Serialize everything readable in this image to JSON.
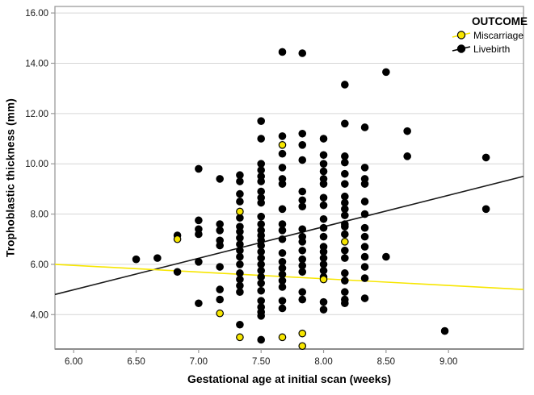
{
  "chart_data": {
    "type": "scatter",
    "title": "",
    "xlabel": "Gestational age at initial scan (weeks)",
    "ylabel": "Trophoblastic thickness (mm)",
    "legend_title": "OUTCOME",
    "legend_position": "top-right-inside",
    "grid": "horizontal",
    "xlim": [
      5.85,
      9.6
    ],
    "ylim": [
      2.63,
      16.26
    ],
    "xticks": [
      {
        "v": 6.0,
        "label": "6.00"
      },
      {
        "v": 6.5,
        "label": "6.50"
      },
      {
        "v": 7.0,
        "label": "7.00"
      },
      {
        "v": 7.5,
        "label": "7.50"
      },
      {
        "v": 8.0,
        "label": "8.00"
      },
      {
        "v": 8.5,
        "label": "8.50"
      },
      {
        "v": 9.0,
        "label": "9.00"
      }
    ],
    "yticks": [
      {
        "v": 16,
        "label": "16.00"
      },
      {
        "v": 14,
        "label": "14.00"
      },
      {
        "v": 12,
        "label": "12.00"
      },
      {
        "v": 10,
        "label": "10.00"
      },
      {
        "v": 8,
        "label": "8.00"
      },
      {
        "v": 6,
        "label": "6.00"
      },
      {
        "v": 4,
        "label": "4.00"
      }
    ],
    "series": [
      {
        "name": "Miscarriage",
        "color": "#f7e600",
        "points": [
          [
            6.83,
            7.0
          ],
          [
            7.17,
            4.05
          ],
          [
            7.33,
            8.1
          ],
          [
            7.33,
            3.1
          ],
          [
            7.67,
            10.75
          ],
          [
            7.67,
            3.1
          ],
          [
            7.83,
            3.25
          ],
          [
            7.83,
            2.75
          ],
          [
            8.0,
            5.4
          ],
          [
            8.17,
            6.9
          ]
        ]
      },
      {
        "name": "Livebirth",
        "color": "#000000",
        "points": [
          [
            6.5,
            6.2
          ],
          [
            6.67,
            6.25
          ],
          [
            6.83,
            7.15
          ],
          [
            6.83,
            5.7
          ],
          [
            7.0,
            9.8
          ],
          [
            7.0,
            7.75
          ],
          [
            7.0,
            7.4
          ],
          [
            7.0,
            7.2
          ],
          [
            7.0,
            6.1
          ],
          [
            7.0,
            4.45
          ],
          [
            7.17,
            9.4
          ],
          [
            7.17,
            7.6
          ],
          [
            7.17,
            7.35
          ],
          [
            7.17,
            6.95
          ],
          [
            7.17,
            6.75
          ],
          [
            7.17,
            5.9
          ],
          [
            7.17,
            5.0
          ],
          [
            7.17,
            4.6
          ],
          [
            7.33,
            9.55
          ],
          [
            7.33,
            9.3
          ],
          [
            7.33,
            8.8
          ],
          [
            7.33,
            8.5
          ],
          [
            7.33,
            7.85
          ],
          [
            7.33,
            7.5
          ],
          [
            7.33,
            7.3
          ],
          [
            7.33,
            7.05
          ],
          [
            7.33,
            6.8
          ],
          [
            7.33,
            6.55
          ],
          [
            7.33,
            6.3
          ],
          [
            7.33,
            6.0
          ],
          [
            7.33,
            5.65
          ],
          [
            7.33,
            5.4
          ],
          [
            7.33,
            5.15
          ],
          [
            7.33,
            4.9
          ],
          [
            7.33,
            3.6
          ],
          [
            7.5,
            11.7
          ],
          [
            7.5,
            11.0
          ],
          [
            7.5,
            10.0
          ],
          [
            7.5,
            9.75
          ],
          [
            7.5,
            9.5
          ],
          [
            7.5,
            9.3
          ],
          [
            7.5,
            8.9
          ],
          [
            7.5,
            8.65
          ],
          [
            7.5,
            8.45
          ],
          [
            7.5,
            7.9
          ],
          [
            7.5,
            7.6
          ],
          [
            7.5,
            7.35
          ],
          [
            7.5,
            7.15
          ],
          [
            7.5,
            6.95
          ],
          [
            7.5,
            6.75
          ],
          [
            7.5,
            6.5
          ],
          [
            7.5,
            6.25
          ],
          [
            7.5,
            6.0
          ],
          [
            7.5,
            5.75
          ],
          [
            7.5,
            5.5
          ],
          [
            7.5,
            5.25
          ],
          [
            7.5,
            4.95
          ],
          [
            7.5,
            4.55
          ],
          [
            7.5,
            4.3
          ],
          [
            7.5,
            4.1
          ],
          [
            7.5,
            3.95
          ],
          [
            7.5,
            3.0
          ],
          [
            7.67,
            14.45
          ],
          [
            7.67,
            11.1
          ],
          [
            7.67,
            10.4
          ],
          [
            7.67,
            9.85
          ],
          [
            7.67,
            9.4
          ],
          [
            7.67,
            9.2
          ],
          [
            7.67,
            8.2
          ],
          [
            7.67,
            7.6
          ],
          [
            7.67,
            7.35
          ],
          [
            7.67,
            7.0
          ],
          [
            7.67,
            6.45
          ],
          [
            7.67,
            6.1
          ],
          [
            7.67,
            5.85
          ],
          [
            7.67,
            5.6
          ],
          [
            7.67,
            5.35
          ],
          [
            7.67,
            5.1
          ],
          [
            7.67,
            4.55
          ],
          [
            7.67,
            4.25
          ],
          [
            7.83,
            14.4
          ],
          [
            7.83,
            11.2
          ],
          [
            7.83,
            10.75
          ],
          [
            7.83,
            10.15
          ],
          [
            7.83,
            8.9
          ],
          [
            7.83,
            8.55
          ],
          [
            7.83,
            8.3
          ],
          [
            7.83,
            7.4
          ],
          [
            7.83,
            7.1
          ],
          [
            7.83,
            6.9
          ],
          [
            7.83,
            6.55
          ],
          [
            7.83,
            6.2
          ],
          [
            7.83,
            5.95
          ],
          [
            7.83,
            5.7
          ],
          [
            7.83,
            4.9
          ],
          [
            7.83,
            4.6
          ],
          [
            8.0,
            11.0
          ],
          [
            8.0,
            10.35
          ],
          [
            8.0,
            10.0
          ],
          [
            8.0,
            9.7
          ],
          [
            8.0,
            9.4
          ],
          [
            8.0,
            9.2
          ],
          [
            8.0,
            8.65
          ],
          [
            8.0,
            8.35
          ],
          [
            8.0,
            7.8
          ],
          [
            8.0,
            7.45
          ],
          [
            8.0,
            7.1
          ],
          [
            8.0,
            6.7
          ],
          [
            8.0,
            6.5
          ],
          [
            8.0,
            6.25
          ],
          [
            8.0,
            6.0
          ],
          [
            8.0,
            5.75
          ],
          [
            8.0,
            5.5
          ],
          [
            8.0,
            4.5
          ],
          [
            8.0,
            4.2
          ],
          [
            8.17,
            13.15
          ],
          [
            8.17,
            11.6
          ],
          [
            8.17,
            10.3
          ],
          [
            8.17,
            10.05
          ],
          [
            8.17,
            9.6
          ],
          [
            8.17,
            9.2
          ],
          [
            8.17,
            8.7
          ],
          [
            8.17,
            8.45
          ],
          [
            8.17,
            8.2
          ],
          [
            8.17,
            7.95
          ],
          [
            8.17,
            7.6
          ],
          [
            8.17,
            7.5
          ],
          [
            8.17,
            7.2
          ],
          [
            8.17,
            6.55
          ],
          [
            8.17,
            6.25
          ],
          [
            8.17,
            5.65
          ],
          [
            8.17,
            5.35
          ],
          [
            8.17,
            4.9
          ],
          [
            8.17,
            4.6
          ],
          [
            8.17,
            4.45
          ],
          [
            8.33,
            11.45
          ],
          [
            8.33,
            9.85
          ],
          [
            8.33,
            9.4
          ],
          [
            8.33,
            9.2
          ],
          [
            8.33,
            8.5
          ],
          [
            8.33,
            8.0
          ],
          [
            8.33,
            7.45
          ],
          [
            8.33,
            7.1
          ],
          [
            8.33,
            6.7
          ],
          [
            8.33,
            6.3
          ],
          [
            8.33,
            5.9
          ],
          [
            8.33,
            5.45
          ],
          [
            8.33,
            4.65
          ],
          [
            8.5,
            13.65
          ],
          [
            8.5,
            6.3
          ],
          [
            8.67,
            11.3
          ],
          [
            8.67,
            10.3
          ],
          [
            8.97,
            3.35
          ],
          [
            9.3,
            10.25
          ],
          [
            9.3,
            8.2
          ]
        ]
      }
    ],
    "fit_lines": [
      {
        "name": "Miscarriage",
        "color": "#f7e600",
        "x1": 5.85,
        "y1": 6.0,
        "x2": 9.6,
        "y2": 5.0
      },
      {
        "name": "Livebirth",
        "color": "#1a1a1a",
        "x1": 5.85,
        "y1": 4.8,
        "x2": 9.6,
        "y2": 9.5
      }
    ],
    "colors": {
      "gridline": "#d6d6d6",
      "frame": "#9a9a9a",
      "tick_label": "#1a1a1a"
    }
  }
}
